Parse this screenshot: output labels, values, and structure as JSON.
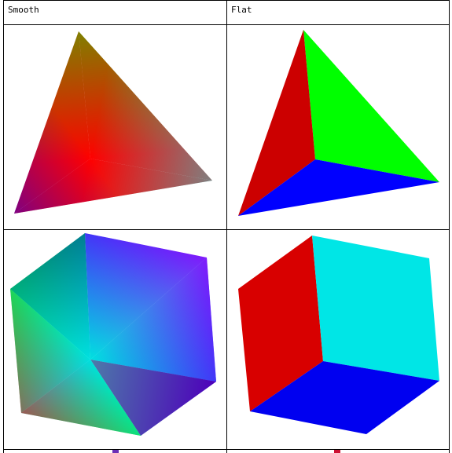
{
  "table": {
    "headers": [
      "Smooth",
      "Flat"
    ],
    "colors": {
      "red": "#ff0000",
      "green": "#00ff00",
      "blue": "#0000ff",
      "cyan": "#00e5e5",
      "magenta": "#ff00ff",
      "flat_red": "#d80000",
      "flat_cyan": "#00e6e6",
      "flat_blue": "#0000f0"
    }
  }
}
